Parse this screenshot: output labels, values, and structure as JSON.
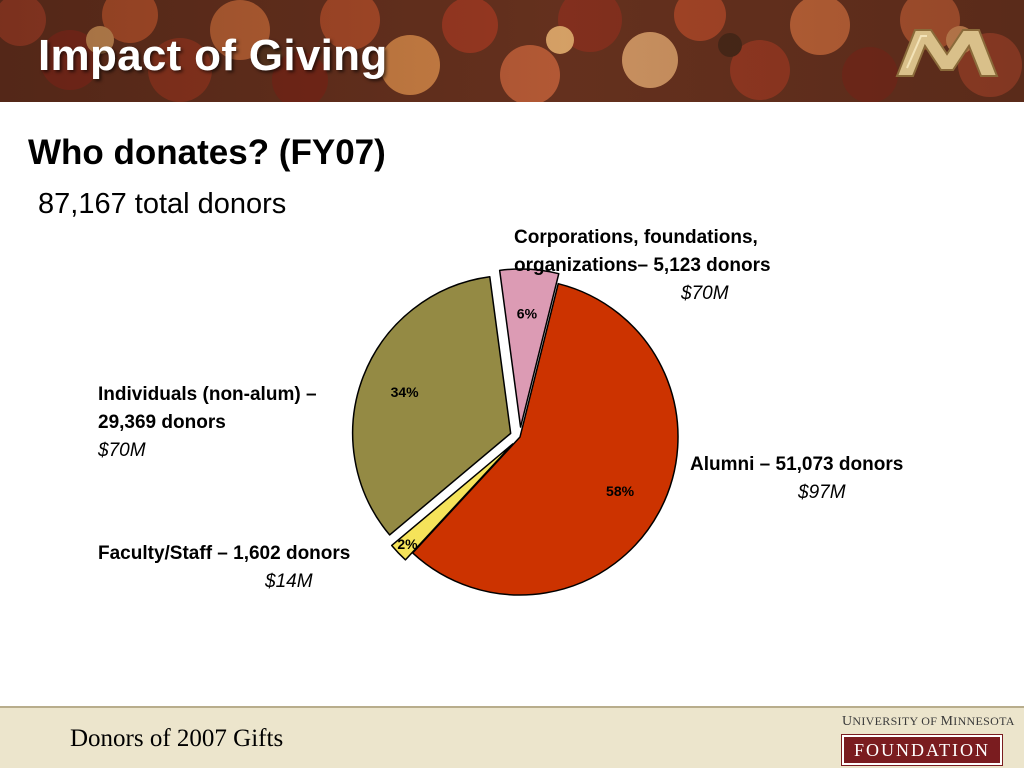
{
  "header": {
    "title": "Impact of Giving"
  },
  "subtitle": "Who donates? (FY07)",
  "total_donors": "87,167 total donors",
  "colors": {
    "alumni": "#cc3300",
    "faculty_staff": "#f5e35a",
    "individuals": "#948a44",
    "corporations": "#dc9bb4",
    "footer_bg": "#ece5cc",
    "foundation_badge": "#7a1c1f"
  },
  "callouts": {
    "corporations": {
      "line1": "Corporations, foundations,",
      "line2": "organizations– 5,123 donors",
      "amount": "$70M"
    },
    "individuals": {
      "line1": "Individuals (non-alum) –",
      "line2": "29,369 donors",
      "amount": "$70M"
    },
    "alumni": {
      "line1": "Alumni – 51,073 donors",
      "amount": "$97M"
    },
    "faculty_staff": {
      "line1": "Faculty/Staff – 1,602 donors",
      "amount": "$14M"
    }
  },
  "chart_data": {
    "type": "pie",
    "title": "",
    "slices": [
      {
        "label": "Alumni",
        "value": 58,
        "display": "58%",
        "color": "#cc3300",
        "exploded": false
      },
      {
        "label": "Faculty/Staff",
        "value": 2,
        "display": "2%",
        "color": "#f5e35a",
        "exploded": true
      },
      {
        "label": "Individuals (non-alum)",
        "value": 34,
        "display": "34%",
        "color": "#948a44",
        "exploded": true
      },
      {
        "label": "Corporations, foundations, organizations",
        "value": 6,
        "display": "6%",
        "color": "#dc9bb4",
        "exploded": true
      }
    ]
  },
  "footer": {
    "text": "Donors of 2007 Gifts",
    "university_line_1": "U",
    "university_line_2": "NIVERSITY OF ",
    "university_line_3": "M",
    "university_line_4": "INNESOTA",
    "foundation": "FOUNDATION"
  }
}
